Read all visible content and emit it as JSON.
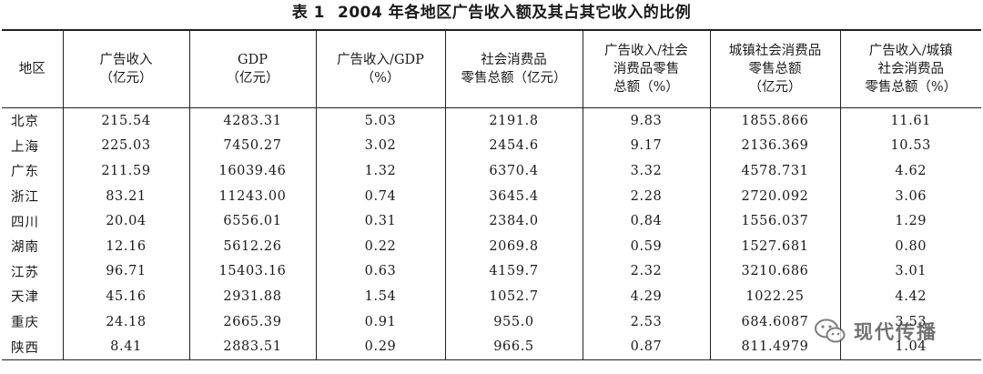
{
  "caption": {
    "label": "表 1",
    "title": "2004 年各地区广告收入额及其占其它收入的比例"
  },
  "table": {
    "headers": [
      [
        "地区"
      ],
      [
        "广告收入",
        "（亿元）"
      ],
      [
        "GDP",
        "（亿元）"
      ],
      [
        "广告收入/GDP",
        "（%）"
      ],
      [
        "社会消费品",
        "零售总额（亿元）"
      ],
      [
        "广告收入/社会",
        "消费品零售",
        "总额（%）"
      ],
      [
        "城镇社会消费品",
        "零售总额",
        "（亿元）"
      ],
      [
        "广告收入/城镇",
        "社会消费品",
        "零售总额（%）"
      ]
    ],
    "rows": [
      [
        "北京",
        "215.54",
        "4283.31",
        "5.03",
        "2191.8",
        "9.83",
        "1855.866",
        "11.61"
      ],
      [
        "上海",
        "225.03",
        "7450.27",
        "3.02",
        "2454.6",
        "9.17",
        "2136.369",
        "10.53"
      ],
      [
        "广东",
        "211.59",
        "16039.46",
        "1.32",
        "6370.4",
        "3.32",
        "4578.731",
        "4.62"
      ],
      [
        "浙江",
        "83.21",
        "11243.00",
        "0.74",
        "3645.4",
        "2.28",
        "2720.092",
        "3.06"
      ],
      [
        "四川",
        "20.04",
        "6556.01",
        "0.31",
        "2384.0",
        "0.84",
        "1556.037",
        "1.29"
      ],
      [
        "湖南",
        "12.16",
        "5612.26",
        "0.22",
        "2069.8",
        "0.59",
        "1527.681",
        "0.80"
      ],
      [
        "江苏",
        "96.71",
        "15403.16",
        "0.63",
        "4159.7",
        "2.32",
        "3210.686",
        "3.01"
      ],
      [
        "天津",
        "45.16",
        "2931.88",
        "1.54",
        "1052.7",
        "4.29",
        "1022.25",
        "4.42"
      ],
      [
        "重庆",
        "24.18",
        "2665.39",
        "0.91",
        "955.0",
        "2.53",
        "684.6087",
        "3.53"
      ],
      [
        "陕西",
        "8.41",
        "2883.51",
        "0.29",
        "966.5",
        "0.87",
        "811.4979",
        "1.04"
      ]
    ]
  },
  "watermark": {
    "icon": "wechat-icon",
    "text": "现代传播"
  }
}
